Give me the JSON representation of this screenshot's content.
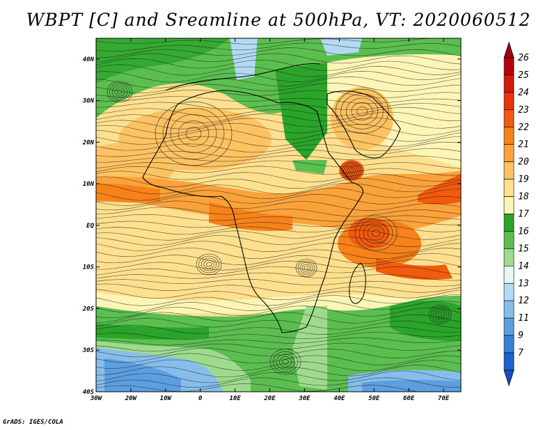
{
  "title": "WBPT [C] and Sreamline at 500hPa, VT: 2020060512",
  "credit": "GrADS: IGES/COLA",
  "map": {
    "lon_range": [
      -30,
      75
    ],
    "lat_range": [
      -40,
      45
    ],
    "x_ticks": [
      {
        "value": -30,
        "label": "30W"
      },
      {
        "value": -20,
        "label": "20W"
      },
      {
        "value": -10,
        "label": "10W"
      },
      {
        "value": 0,
        "label": "0"
      },
      {
        "value": 10,
        "label": "10E"
      },
      {
        "value": 20,
        "label": "20E"
      },
      {
        "value": 30,
        "label": "30E"
      },
      {
        "value": 40,
        "label": "40E"
      },
      {
        "value": 50,
        "label": "50E"
      },
      {
        "value": 60,
        "label": "60E"
      },
      {
        "value": 70,
        "label": "70E"
      }
    ],
    "y_ticks": [
      {
        "value": 40,
        "label": "40N"
      },
      {
        "value": 30,
        "label": "30N"
      },
      {
        "value": 20,
        "label": "20N"
      },
      {
        "value": 10,
        "label": "10N"
      },
      {
        "value": 0,
        "label": "EQ"
      },
      {
        "value": -10,
        "label": "10S"
      },
      {
        "value": -20,
        "label": "20S"
      },
      {
        "value": -30,
        "label": "30S"
      },
      {
        "value": -40,
        "label": "40S"
      }
    ]
  },
  "colorbar": {
    "levels": [
      {
        "label": "26",
        "color": "#b8000f"
      },
      {
        "label": "25",
        "color": "#d21a0d"
      },
      {
        "label": "24",
        "color": "#e8350c"
      },
      {
        "label": "23",
        "color": "#f25a0e"
      },
      {
        "label": "22",
        "color": "#f7821a"
      },
      {
        "label": "21",
        "color": "#fba33a"
      },
      {
        "label": "20",
        "color": "#fdc261"
      },
      {
        "label": "19",
        "color": "#fee08e"
      },
      {
        "label": "18",
        "color": "#fdf5b5"
      },
      {
        "label": "17",
        "color": "#2aa52a"
      },
      {
        "label": "16",
        "color": "#5bbf4f"
      },
      {
        "label": "15",
        "color": "#9edb8c"
      },
      {
        "label": "14",
        "color": "#e5f8f4"
      },
      {
        "label": "13",
        "color": "#b4d9f5"
      },
      {
        "label": "12",
        "color": "#86bdeb"
      },
      {
        "label": "11",
        "color": "#5c9fe0"
      },
      {
        "label": "9",
        "color": "#3a80d6"
      },
      {
        "label": "7",
        "color": "#1e62cf"
      }
    ],
    "cap_colors": {
      "top": "#a00010",
      "bottom": "#1450c8"
    }
  }
}
